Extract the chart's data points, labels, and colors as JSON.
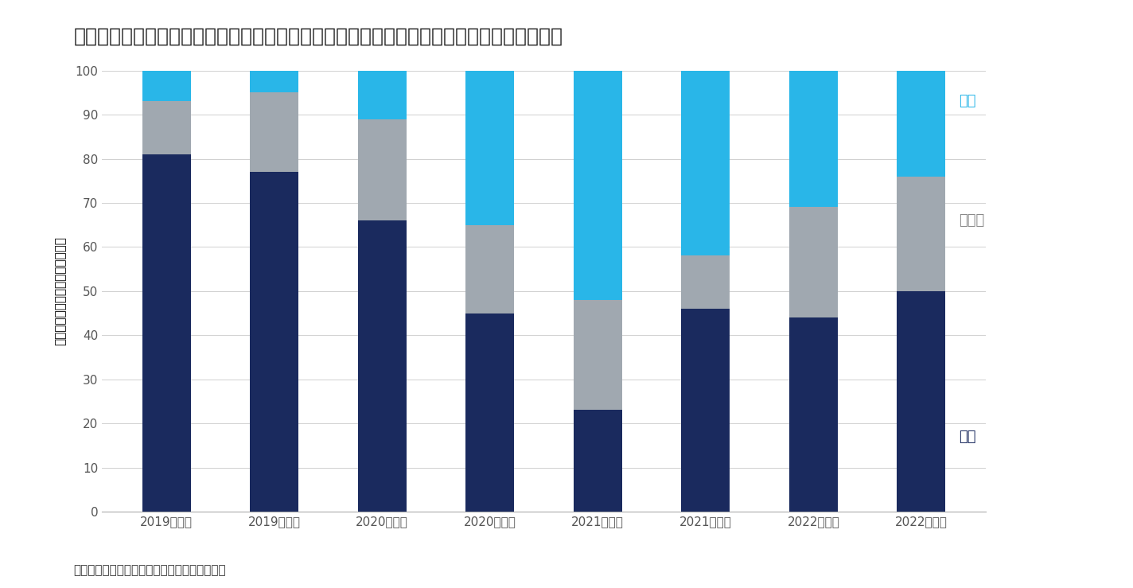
{
  "title": "図表５：オフィス移転件数における「拡張」・「同規模」・「縮小」の比率（情報通信業）",
  "source": "（出所）三幸エステート・ニッセイ基礎研究所",
  "ylabel": "拡張・同規模・縮小の割合（％）",
  "categories": [
    "2019年上期",
    "2019年下期",
    "2020年上期",
    "2020年下期",
    "2021年上期",
    "2021年下期",
    "2022年上期",
    "2022年下期"
  ],
  "kakucho": [
    81,
    77,
    66,
    45,
    23,
    46,
    44,
    50
  ],
  "doukiribo": [
    12,
    18,
    23,
    20,
    25,
    12,
    25,
    26
  ],
  "shukusho": [
    7,
    5,
    11,
    35,
    52,
    42,
    31,
    24
  ],
  "color_kakucho": "#1a2a5e",
  "color_doukiribo": "#a0a8b0",
  "color_shukusho": "#29b6e8",
  "label_kakucho": "拡張",
  "label_doukiribo": "同規模",
  "label_shukusho": "縮小",
  "ylim": [
    0,
    100
  ],
  "yticks": [
    0,
    10,
    20,
    30,
    40,
    50,
    60,
    70,
    80,
    90,
    100
  ],
  "background_color": "#ffffff",
  "title_fontsize": 18,
  "tick_fontsize": 11,
  "ylabel_fontsize": 11,
  "label_fontsize": 13,
  "source_fontsize": 11
}
